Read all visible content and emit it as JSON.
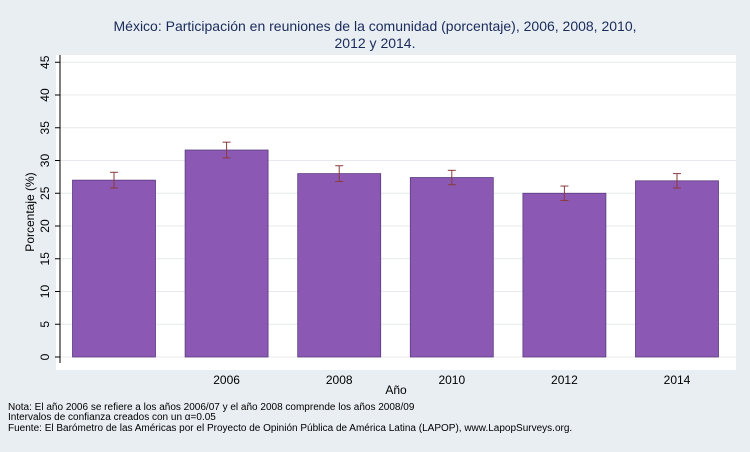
{
  "chart_data": {
    "type": "bar",
    "title_line1": "México: Participación en reuniones de la comunidad (porcentaje), 2006, 2008, 2010,",
    "title_line2": "2012 y 2014.",
    "xlabel": "Año",
    "ylabel": "Porcentaje (%)",
    "ylim": [
      0,
      45
    ],
    "yticks": [
      "0",
      "5",
      "10",
      "15",
      "20",
      "25",
      "30",
      "35",
      "40",
      "45"
    ],
    "grid": true,
    "bar_color": "#8b59b3",
    "error_color": "#8b3a3a",
    "bars": [
      {
        "label": "",
        "value": 27.0,
        "ci_low": 25.8,
        "ci_high": 28.2
      },
      {
        "label": "2006",
        "value": 31.6,
        "ci_low": 30.4,
        "ci_high": 32.8
      },
      {
        "label": "2008",
        "value": 28.0,
        "ci_low": 26.8,
        "ci_high": 29.2
      },
      {
        "label": "2010",
        "value": 27.4,
        "ci_low": 26.3,
        "ci_high": 28.5
      },
      {
        "label": "2012",
        "value": 25.0,
        "ci_low": 23.9,
        "ci_high": 26.1
      },
      {
        "label": "2014",
        "value": 26.9,
        "ci_low": 25.8,
        "ci_high": 28.0
      }
    ],
    "notes": [
      "Nota: El año 2006 se refiere a los años 2006/07 y el año 2008 comprende los años 2008/09",
      "Intervalos de confianza creados con un α=0.05",
      "Fuente: El Barómetro de las Américas por el Proyecto de Opinión Pública de América Latina (LAPOP), www.LapopSurveys.org."
    ]
  }
}
